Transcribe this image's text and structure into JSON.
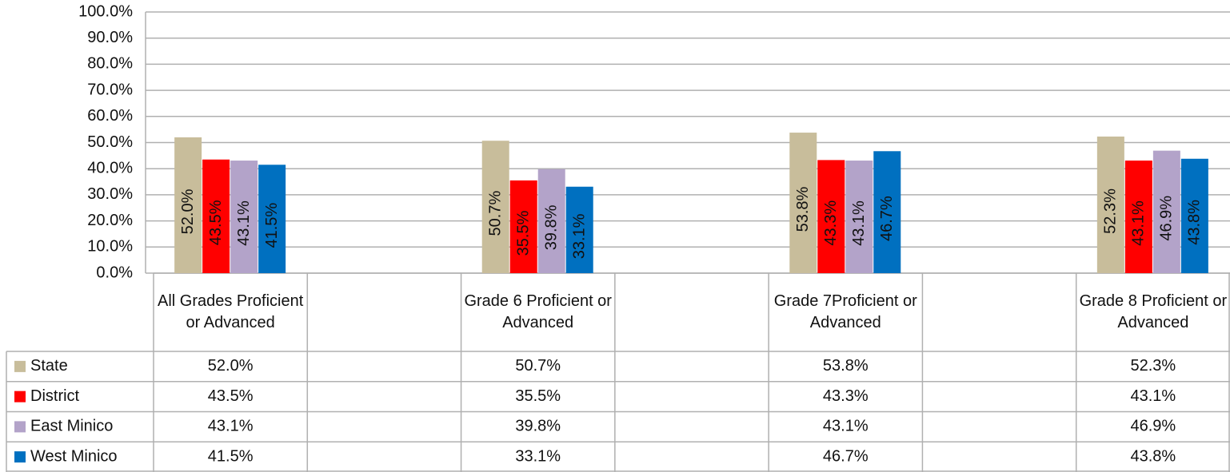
{
  "chart_data": {
    "type": "bar",
    "categories": [
      "All Grades Proficient or Advanced",
      null,
      "Grade 6 Proficient or Advanced",
      null,
      "Grade 7Proficient or Advanced",
      null,
      "Grade 8 Proficient or Advanced"
    ],
    "series": [
      {
        "name": "State",
        "color": "#c8bd9b",
        "values": [
          52.0,
          null,
          50.7,
          null,
          53.8,
          null,
          52.3
        ],
        "value_labels": [
          "52.0%",
          null,
          "50.7%",
          null,
          "53.8%",
          null,
          "52.3%"
        ]
      },
      {
        "name": "District",
        "color": "#ff0000",
        "values": [
          43.5,
          null,
          35.5,
          null,
          43.3,
          null,
          43.1
        ],
        "value_labels": [
          "43.5%",
          null,
          "35.5%",
          null,
          "43.3%",
          null,
          "43.1%"
        ]
      },
      {
        "name": "East Minico",
        "color": "#b3a3c9",
        "values": [
          43.1,
          null,
          39.8,
          null,
          43.1,
          null,
          46.9
        ],
        "value_labels": [
          "43.1%",
          null,
          "39.8%",
          null,
          "43.1%",
          null,
          "46.9%"
        ]
      },
      {
        "name": "West Minico",
        "color": "#0070c0",
        "values": [
          41.5,
          null,
          33.1,
          null,
          46.7,
          null,
          43.8
        ],
        "value_labels": [
          "41.5%",
          null,
          "33.1%",
          null,
          "46.7%",
          null,
          "43.8%"
        ]
      }
    ],
    "ylim": [
      0,
      100
    ],
    "yticks": [
      {
        "value": 0,
        "label": "0.0%"
      },
      {
        "value": 10,
        "label": "10.0%"
      },
      {
        "value": 20,
        "label": "20.0%"
      },
      {
        "value": 30,
        "label": "30.0%"
      },
      {
        "value": 40,
        "label": "40.0%"
      },
      {
        "value": 50,
        "label": "50.0%"
      },
      {
        "value": 60,
        "label": "60.0%"
      },
      {
        "value": 70,
        "label": "70.0%"
      },
      {
        "value": 80,
        "label": "80.0%"
      },
      {
        "value": 90,
        "label": "90.0%"
      },
      {
        "value": 100,
        "label": "100.0%"
      }
    ],
    "grid": true
  }
}
